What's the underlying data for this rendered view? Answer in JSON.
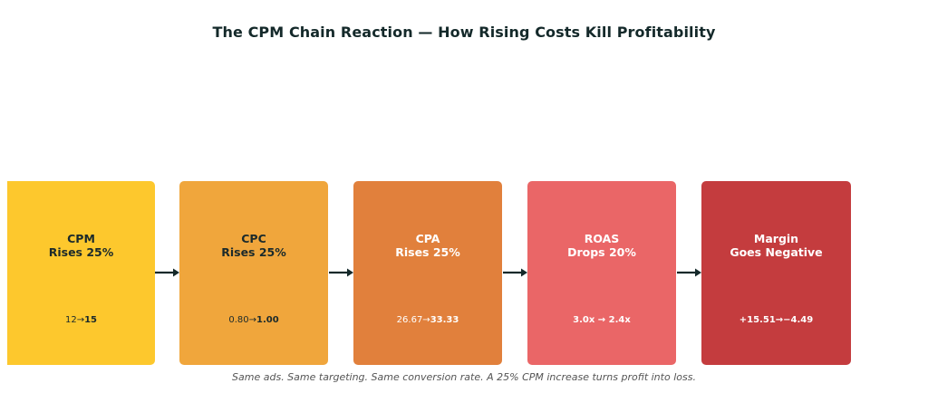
{
  "title": "The CPM Chain Reaction — How Rising Costs Kill Profitability",
  "steps": [
    {
      "line1": "CPM",
      "line2": "Rises 25%",
      "value_from": "12→",
      "value_to": "15",
      "color": "#fdc82d",
      "text_tone": "dark"
    },
    {
      "line1": "CPC",
      "line2": "Rises 25%",
      "value_from": "0.80→",
      "value_to": "1.00",
      "color": "#f0a63c",
      "text_tone": "dark"
    },
    {
      "line1": "CPA",
      "line2": "Rises 25%",
      "value_from": "26.67→",
      "value_to": "33.33",
      "color": "#e1803c",
      "text_tone": "light"
    },
    {
      "line1": "ROAS",
      "line2": "Drops 20%",
      "value_from": "",
      "value_to": "3.0x → 2.4x",
      "color": "#ea6667",
      "text_tone": "light"
    },
    {
      "line1": "Margin",
      "line2": "Goes Negative",
      "value_from": "",
      "value_to": "+15.51→−4.49",
      "color": "#c43c3e",
      "text_tone": "light"
    }
  ],
  "caption": "Same ads. Same targeting. Same conversion rate. A 25% CPM increase turns profit into loss.",
  "colors": {
    "arrow": "#14292a",
    "title": "#14292a"
  }
}
